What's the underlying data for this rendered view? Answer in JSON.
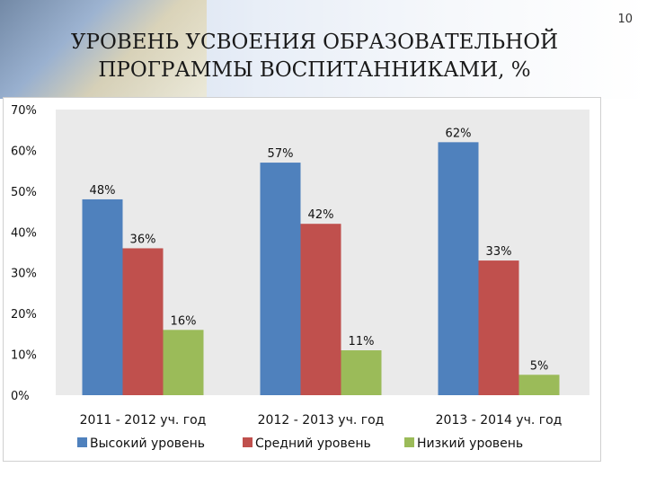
{
  "slide": {
    "number": "10"
  },
  "title": "УРОВЕНЬ УСВОЕНИЯ ОБРАЗОВАТЕЛЬНОЙ ПРОГРАММЫ ВОСПИТАННИКАМИ, %",
  "chart_data": {
    "type": "bar",
    "categories": [
      "2011 - 2012 уч. год",
      "2012 - 2013 уч. год",
      "2013 - 2014 уч. год"
    ],
    "series": [
      {
        "name": "Высокий уровень",
        "values": [
          48,
          57,
          62
        ],
        "color": "#4f81bd"
      },
      {
        "name": "Средний уровень",
        "values": [
          36,
          42,
          33
        ],
        "color": "#c0504d"
      },
      {
        "name": "Низкий уровень",
        "values": [
          16,
          11,
          5
        ],
        "color": "#9bbb59"
      }
    ],
    "data_labels": [
      [
        "48%",
        "57%",
        "62%"
      ],
      [
        "36%",
        "42%",
        "33%"
      ],
      [
        "16%",
        "11%",
        "5%"
      ]
    ],
    "y_ticks": [
      "0%",
      "10%",
      "20%",
      "30%",
      "40%",
      "50%",
      "60%",
      "70%"
    ],
    "ylim": [
      0,
      70
    ],
    "grid": false,
    "plot_background": "#eaeaea",
    "legend_position": "bottom"
  }
}
